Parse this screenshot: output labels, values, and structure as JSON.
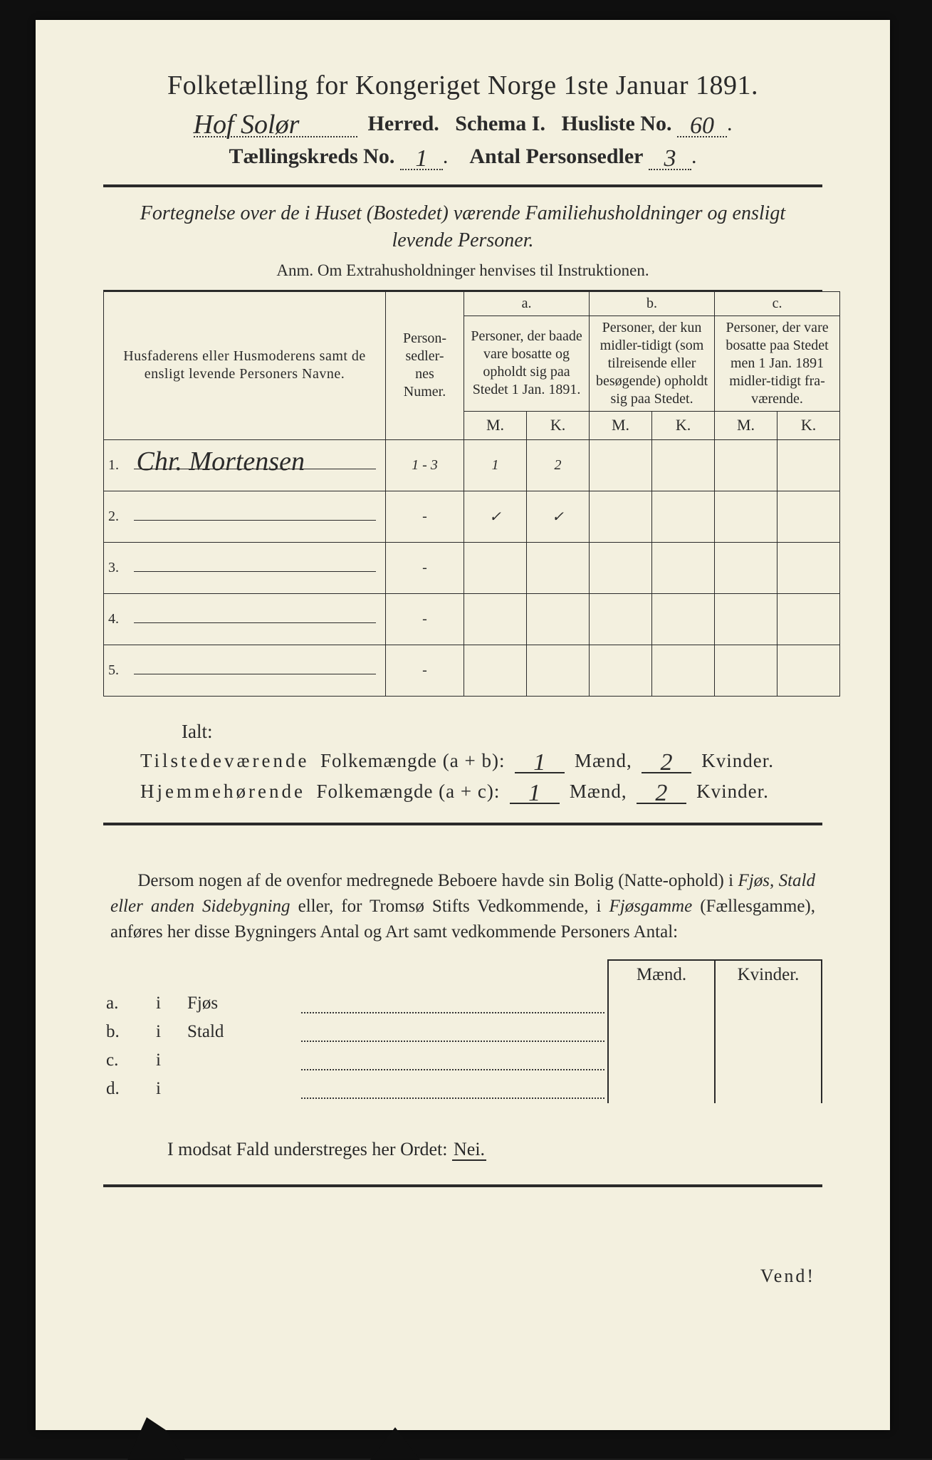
{
  "title": "Folketælling for Kongeriget Norge 1ste Januar 1891.",
  "header": {
    "herred_handwritten": "Hof Solør",
    "herred_label": "Herred.",
    "schema_label": "Schema I.",
    "husliste_label": "Husliste No.",
    "husliste_no": "60",
    "kreds_label": "Tællingskreds No.",
    "kreds_no": "1",
    "personsedler_label": "Antal Personsedler",
    "personsedler_no": "3"
  },
  "subtitle": "Fortegnelse over de i Huset (Bostedet) værende Familiehusholdninger og ensligt levende Personer.",
  "anm": "Anm.  Om Extrahusholdninger henvises til Instruktionen.",
  "table": {
    "col_name": "Husfaderens eller Husmoderens samt de ensligt levende Personers Navne.",
    "col_num": "Person-\nsedler-\nnes\nNumer.",
    "grp_a_label": "a.",
    "grp_a_text": "Personer, der baade vare bosatte og opholdt sig paa Stedet 1 Jan. 1891.",
    "grp_b_label": "b.",
    "grp_b_text": "Personer, der kun midler-tidigt (som tilreisende eller besøgende) opholdt sig paa Stedet.",
    "grp_c_label": "c.",
    "grp_c_text": "Personer, der vare bosatte paa Stedet men 1 Jan. 1891 midler-tidigt fra-værende.",
    "M": "M.",
    "K": "K.",
    "rows": [
      {
        "n": "1.",
        "name": "Chr. Mortensen",
        "num": "1 - 3",
        "aM": "1",
        "aK": "2",
        "bM": "",
        "bK": "",
        "cM": "",
        "cK": ""
      },
      {
        "n": "2.",
        "name": "",
        "num": "-",
        "aM": "✓",
        "aK": "✓",
        "bM": "",
        "bK": "",
        "cM": "",
        "cK": ""
      },
      {
        "n": "3.",
        "name": "",
        "num": "-",
        "aM": "",
        "aK": "",
        "bM": "",
        "bK": "",
        "cM": "",
        "cK": ""
      },
      {
        "n": "4.",
        "name": "",
        "num": "-",
        "aM": "",
        "aK": "",
        "bM": "",
        "bK": "",
        "cM": "",
        "cK": ""
      },
      {
        "n": "5.",
        "name": "",
        "num": "-",
        "aM": "",
        "aK": "",
        "bM": "",
        "bK": "",
        "cM": "",
        "cK": ""
      }
    ]
  },
  "ialt": "Ialt:",
  "summary": {
    "line1_a": "Tilstedeværende",
    "line1_b": "Folkemængde (a + b):",
    "line2_a": "Hjemmehørende",
    "line2_b": "Folkemængde (a + c):",
    "maend": "Mænd,",
    "kvinder": "Kvinder.",
    "ab_m": "1",
    "ab_k": "2",
    "ac_m": "1",
    "ac_k": "2"
  },
  "para": {
    "t1": "Dersom nogen af de ovenfor medregnede Beboere havde sin Bolig (Natte-ophold) i ",
    "i1": "Fjøs, Stald eller anden Sidebygning",
    "t2": " eller, for Tromsø Stifts Vedkommende, i ",
    "i2": "Fjøsgamme",
    "t3": " (Fællesgamme), anføres her disse Bygningers Antal og Art samt vedkommende Personers Antal:"
  },
  "bldg": {
    "maend": "Mænd.",
    "kvinder": "Kvinder.",
    "rows": [
      {
        "l": "a.",
        "i": "i",
        "name": "Fjøs"
      },
      {
        "l": "b.",
        "i": "i",
        "name": "Stald"
      },
      {
        "l": "c.",
        "i": "i",
        "name": ""
      },
      {
        "l": "d.",
        "i": "i",
        "name": ""
      }
    ]
  },
  "nei_line": "I modsat Fald understreges her Ordet: ",
  "nei": "Nei.",
  "vend": "Vend!"
}
